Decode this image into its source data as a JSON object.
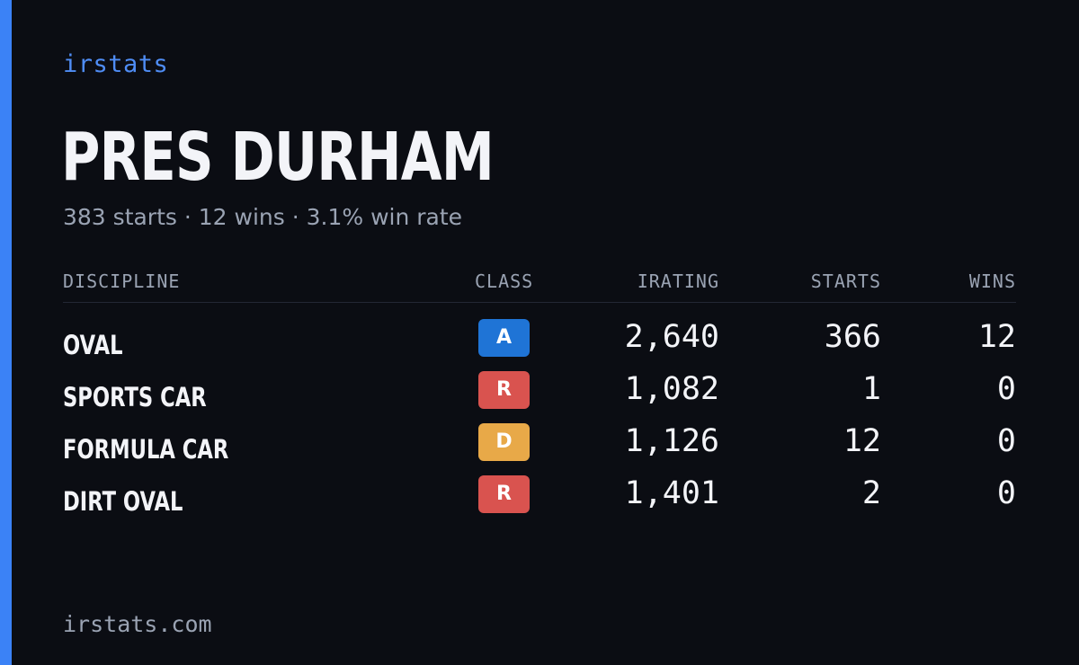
{
  "brand": "irstats",
  "driver": {
    "name": "PRES DURHAM",
    "summary": "383 starts · 12 wins · 3.1% win rate"
  },
  "table": {
    "headers": {
      "discipline": "DISCIPLINE",
      "class": "CLASS",
      "irating": "IRATING",
      "starts": "STARTS",
      "wins": "WINS"
    },
    "rows": [
      {
        "discipline": "OVAL",
        "class": "A",
        "class_color": "#1f74d6",
        "irating": "2,640",
        "starts": "366",
        "wins": "12"
      },
      {
        "discipline": "SPORTS CAR",
        "class": "R",
        "class_color": "#d9534f",
        "irating": "1,082",
        "starts": "1",
        "wins": "0"
      },
      {
        "discipline": "FORMULA CAR",
        "class": "D",
        "class_color": "#e8a948",
        "irating": "1,126",
        "starts": "12",
        "wins": "0"
      },
      {
        "discipline": "DIRT OVAL",
        "class": "R",
        "class_color": "#d9534f",
        "irating": "1,401",
        "starts": "2",
        "wins": "0"
      }
    ]
  },
  "footer": "irstats.com",
  "colors": {
    "background": "#0b0d13",
    "accent": "#3b82f6",
    "brand_text": "#4f8df5",
    "muted_text": "#9aa3b3",
    "primary_text": "#f3f4f8"
  }
}
